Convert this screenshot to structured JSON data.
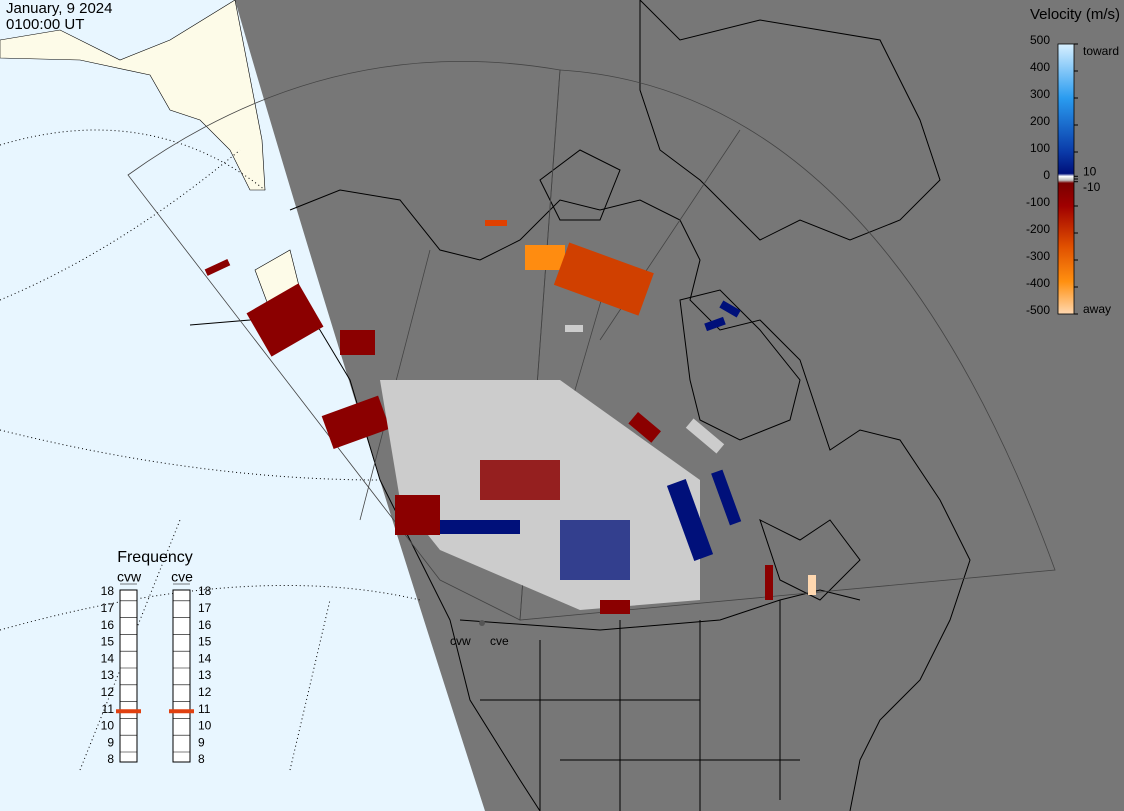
{
  "header": {
    "date": "January, 9 2024",
    "time": "0100:00 UT"
  },
  "velocity_scale": {
    "title": "Velocity (m/s)",
    "range": [
      -500,
      500
    ],
    "ticks": [
      500,
      400,
      300,
      200,
      100,
      10,
      0,
      -10,
      -100,
      -200,
      -300,
      -400,
      -500
    ],
    "toward": "toward",
    "away": "away"
  },
  "frequency_panel": {
    "title": "Frequency",
    "range": [
      8,
      18
    ],
    "ticks": [
      18,
      17,
      16,
      15,
      14,
      13,
      12,
      11,
      10,
      9,
      8
    ],
    "radars": [
      {
        "name": "cvw",
        "frequency": 10.9
      },
      {
        "name": "cve",
        "frequency": 10.9
      }
    ]
  },
  "map_labels": [
    "cvw",
    "cve"
  ]
}
